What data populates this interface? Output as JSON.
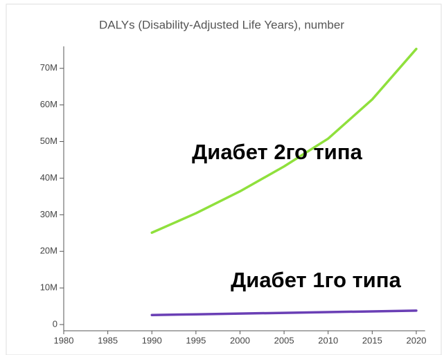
{
  "chart_data": {
    "type": "line",
    "title": "DALYs (Disability-Adjusted Life Years), number",
    "x": [
      1990,
      1995,
      2000,
      2005,
      2010,
      2015,
      2020
    ],
    "series": [
      {
        "name": "Диабет 2го типа",
        "color": "#8fe03c",
        "values": [
          25100000,
          30400000,
          36400000,
          43200000,
          50800000,
          61500000,
          75300000
        ]
      },
      {
        "name": "Диабет 1го типа",
        "color": "#6a3fb5",
        "values": [
          2600000,
          2800000,
          3000000,
          3200000,
          3400000,
          3600000,
          3800000
        ]
      }
    ],
    "xlim": [
      1980,
      2021
    ],
    "xticks": [
      1980,
      1985,
      1990,
      1995,
      2000,
      2005,
      2010,
      2015,
      2020
    ],
    "ylim": [
      -1700000,
      76000000
    ],
    "yticks": [
      {
        "value": 0,
        "label": "0"
      },
      {
        "value": 10000000,
        "label": "10M"
      },
      {
        "value": 20000000,
        "label": "20M"
      },
      {
        "value": 30000000,
        "label": "30M"
      },
      {
        "value": 40000000,
        "label": "40M"
      },
      {
        "value": 50000000,
        "label": "50M"
      },
      {
        "value": 60000000,
        "label": "60M"
      },
      {
        "value": 70000000,
        "label": "70M"
      }
    ],
    "grid": false
  }
}
